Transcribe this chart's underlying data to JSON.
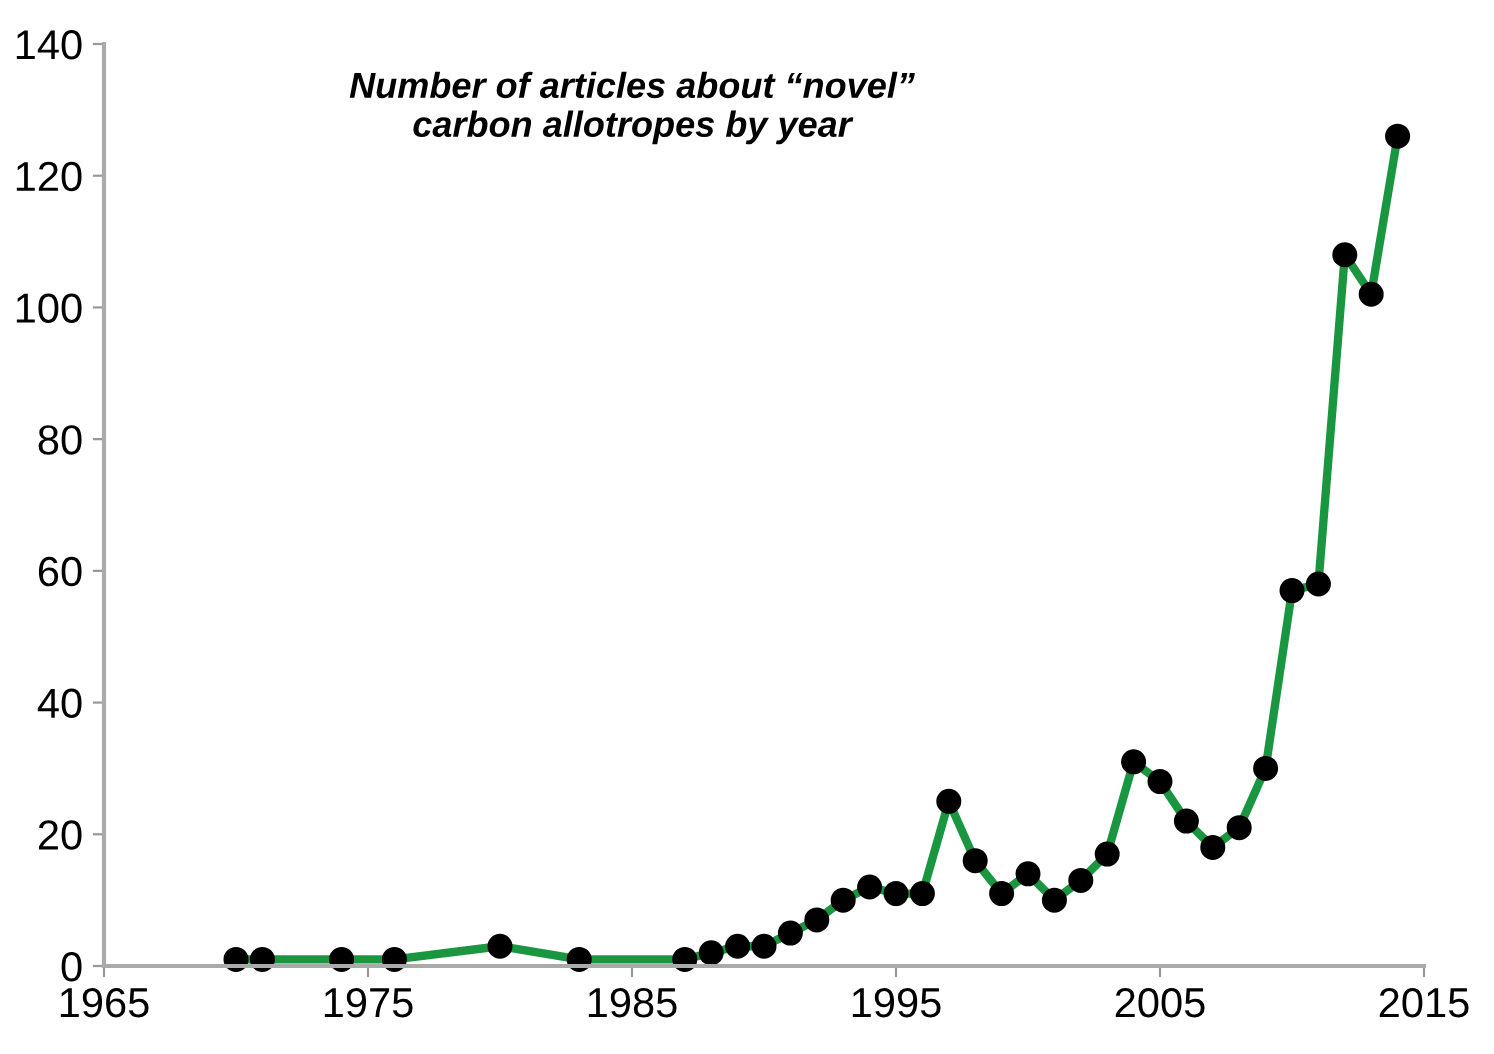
{
  "chart_data": {
    "type": "line",
    "title": "Number of articles about “novel”\ncarbon allotropes by year",
    "x": [
      1970,
      1971,
      1974,
      1976,
      1980,
      1983,
      1987,
      1988,
      1989,
      1990,
      1991,
      1992,
      1993,
      1994,
      1995,
      1996,
      1997,
      1998,
      1999,
      2000,
      2001,
      2002,
      2003,
      2004,
      2005,
      2006,
      2007,
      2008,
      2009,
      2010,
      2011,
      2012,
      2013,
      2014
    ],
    "series": [
      {
        "color": "#1a9641",
        "values": [
          1,
          1,
          1,
          1,
          3,
          1,
          1,
          2,
          3,
          3,
          5,
          7,
          10,
          12,
          11,
          11,
          25,
          16,
          11,
          14,
          10,
          13,
          17,
          31,
          28,
          22,
          18,
          21,
          30,
          57,
          58,
          108,
          102,
          126
        ]
      }
    ],
    "xlim": [
      1965,
      2015
    ],
    "xticks": [
      1965,
      1975,
      1985,
      1995,
      2005,
      2015
    ],
    "ylim": [
      0,
      140
    ],
    "yticks": [
      0,
      20,
      40,
      60,
      80,
      100,
      120,
      140
    ],
    "grid": false,
    "legend": false,
    "marker": "circle",
    "line_style": "solid"
  }
}
